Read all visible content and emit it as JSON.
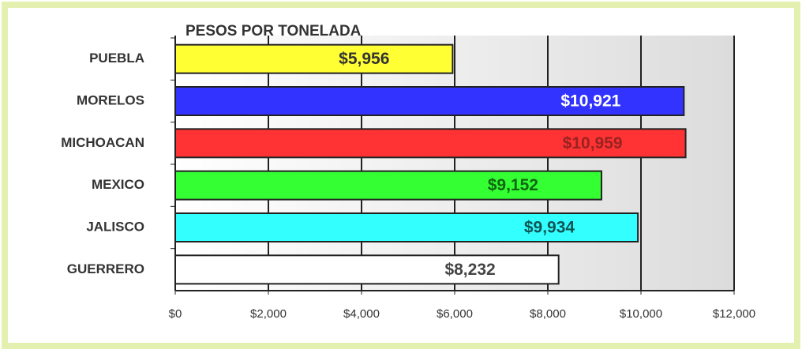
{
  "chart_data": {
    "type": "barh",
    "title": "PESOS POR TONELADA",
    "categories": [
      "PUEBLA",
      "MORELOS",
      "MICHOACAN",
      "MEXICO",
      "JALISCO",
      "GUERRERO"
    ],
    "values": [
      5956,
      10921,
      10959,
      9152,
      9934,
      8232
    ],
    "value_labels": [
      "$5,956",
      "$10,921",
      "$10,959",
      "$9,152",
      "$9,934",
      "$8,232"
    ],
    "colors": [
      "#ffff33",
      "#3333ff",
      "#ff3333",
      "#33ff33",
      "#33ffff",
      "#ffffff"
    ],
    "label_colors": [
      "#333333",
      "#ffffff",
      "#992222",
      "#116611",
      "#115555",
      "#444444"
    ],
    "xlim": [
      0,
      12000
    ],
    "xticks": [
      {
        "value": 0,
        "label": "$0"
      },
      {
        "value": 2000,
        "label": "$2,000"
      },
      {
        "value": 4000,
        "label": "$4,000"
      },
      {
        "value": 6000,
        "label": "$6,000"
      },
      {
        "value": 8000,
        "label": "$8,000"
      },
      {
        "value": 10000,
        "label": "$10,000"
      },
      {
        "value": 12000,
        "label": "$12,000"
      }
    ],
    "grid": true
  }
}
